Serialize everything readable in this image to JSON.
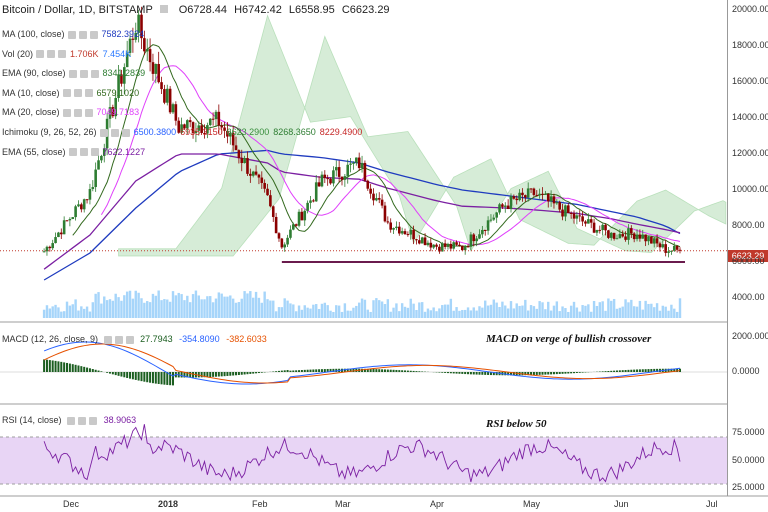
{
  "title": {
    "pair": "Bitcoin / Dollar, 1D, BITSTAMP",
    "open": "O6728.44",
    "high": "H6742.42",
    "low": "L6558.95",
    "close": "C6623.29"
  },
  "indicators": [
    {
      "label": "MA (100, close)",
      "values": [
        "7582.3924"
      ],
      "colors": [
        "#1f3bbf"
      ]
    },
    {
      "label": "Vol (20)",
      "values": [
        "1.706K",
        "7.454K"
      ],
      "colors": [
        "#c0392b",
        "#2979ff"
      ]
    },
    {
      "label": "EMA (90, close)",
      "values": [
        "8341.2839"
      ],
      "colors": [
        "#2e7d32"
      ]
    },
    {
      "label": "MA (10, close)",
      "values": [
        "6579.1020"
      ],
      "colors": [
        "#33691e"
      ]
    },
    {
      "label": "MA (20, close)",
      "values": [
        "7049.7183"
      ],
      "colors": [
        "#e040fb"
      ]
    },
    {
      "label": "Ichimoku (9, 26, 52, 26)",
      "values": [
        "6500.3800",
        "6935.3150",
        "6623.2900",
        "8268.3650",
        "8229.4900"
      ],
      "colors": [
        "#2962ff",
        "#c62828",
        "#388e3c",
        "#2e7d32",
        "#c62828"
      ]
    },
    {
      "label": "EMA (55, close)",
      "values": [
        "7622.1227"
      ],
      "colors": [
        "#7b1fa2"
      ]
    }
  ],
  "macd_legend": {
    "label": "MACD (12, 26, close, 9)",
    "values": [
      "27.7943",
      "-354.8090",
      "-382.6033"
    ],
    "colors": [
      "#1b5e20",
      "#2962ff",
      "#e65100"
    ]
  },
  "rsi_legend": {
    "label": "RSI (14, close)",
    "values": [
      "38.9063"
    ],
    "colors": [
      "#7b1fa2"
    ]
  },
  "annotations": {
    "macd": "MACD on verge of bullish crossover",
    "rsi": "RSI below 50"
  },
  "current_price": "6623.29",
  "price_axis": [
    "20000.00",
    "18000.00",
    "16000.00",
    "14000.00",
    "12000.00",
    "10000.00",
    "8000.00",
    "6000.00",
    "4000.00"
  ],
  "macd_axis": [
    "2000.0000",
    "0.0000"
  ],
  "rsi_axis": [
    "75.0000",
    "50.0000",
    "25.0000"
  ],
  "time_axis": [
    "Dec",
    "2018",
    "Feb",
    "Mar",
    "Apr",
    "May",
    "Jun",
    "Jul"
  ],
  "colors": {
    "up": "#2e7d32",
    "down": "#8b0000",
    "rsi_band": "#e8d5f5",
    "price_line": "#c0392b",
    "support": "#6a1b4d",
    "vol": "#90caf9"
  },
  "chart_data": {
    "type": "line",
    "title": "Bitcoin / Dollar, 1D, BITSTAMP",
    "x": [
      "2017-11-15",
      "2017-12-01",
      "2017-12-17",
      "2018-01-01",
      "2018-01-15",
      "2018-02-01",
      "2018-02-06",
      "2018-02-20",
      "2018-03-05",
      "2018-03-15",
      "2018-04-01",
      "2018-04-10",
      "2018-04-25",
      "2018-05-05",
      "2018-05-20",
      "2018-06-01",
      "2018-06-10",
      "2018-06-20",
      "2018-06-25"
    ],
    "series": [
      {
        "name": "Bitcoin / Dollar",
        "values": [
          6600,
          9900,
          19300,
          13500,
          13800,
          9500,
          6900,
          10500,
          11500,
          8200,
          6900,
          6800,
          9200,
          9800,
          8400,
          7500,
          7600,
          6700,
          6623
        ]
      },
      {
        "name": "MA (100, close)",
        "values": [
          5000,
          6500,
          9000,
          11000,
          12000,
          12200,
          12000,
          11800,
          11500,
          11000,
          10300,
          10000,
          9700,
          9500,
          9200,
          8800,
          8500,
          8000,
          7582
        ]
      },
      {
        "name": "EMA (55, close)",
        "values": [
          5600,
          7500,
          10500,
          12000,
          12000,
          11500,
          11000,
          10700,
          10600,
          10100,
          9400,
          9100,
          9000,
          8900,
          8700,
          8400,
          8100,
          7800,
          7622
        ]
      }
    ],
    "support_level": 6000,
    "ylim": [
      3000,
      20500
    ],
    "yticks": [
      4000,
      6000,
      8000,
      10000,
      12000,
      14000,
      16000,
      18000,
      20000
    ],
    "grid": false
  }
}
